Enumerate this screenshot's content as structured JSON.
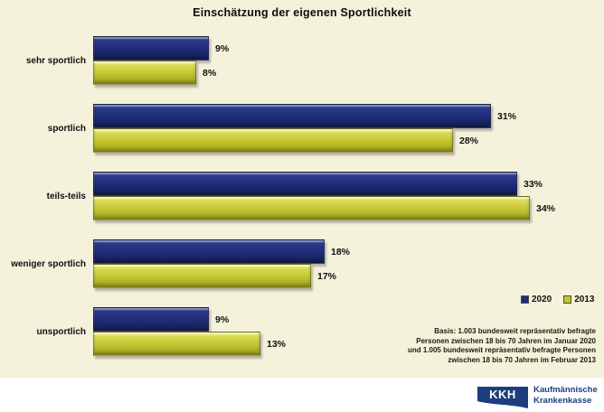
{
  "title": "Einschätzung der eigenen Sportlichkeit",
  "chart_data": {
    "type": "bar",
    "orientation": "horizontal",
    "title": "Einschätzung der eigenen Sportlichkeit",
    "categories": [
      "sehr sportlich",
      "sportlich",
      "teils-teils",
      "weniger sportlich",
      "unsportlich"
    ],
    "series": [
      {
        "name": "2020",
        "color": "#1e2b77",
        "values": [
          9,
          31,
          33,
          18,
          9
        ]
      },
      {
        "name": "2013",
        "color": "#c4c431",
        "values": [
          8,
          28,
          34,
          17,
          13
        ]
      }
    ],
    "value_suffix": "%",
    "xlim": [
      0,
      40
    ],
    "grid": false,
    "legend_position": "bottom-right"
  },
  "footnote": {
    "lines": [
      "Basis: 1.003 bundesweit repräsentativ befragte",
      "Personen zwischen 18 bis 70 Jahren im Januar 2020",
      "und 1.005 bundesweit repräsentativ befragte Personen",
      "zwischen 18 bis 70 Jahren im Februar 2013"
    ]
  },
  "branding": {
    "logo_text": "KKH",
    "company_line1": "Kaufmännische",
    "company_line2": "Krankenkasse",
    "brand_color": "#1e3d7d"
  },
  "colors": {
    "chart_background": "#f4f2da",
    "footer_background": "#ffffff",
    "bar_2020": "#1e2b77",
    "bar_2013": "#c4c431",
    "text": "#101010"
  }
}
